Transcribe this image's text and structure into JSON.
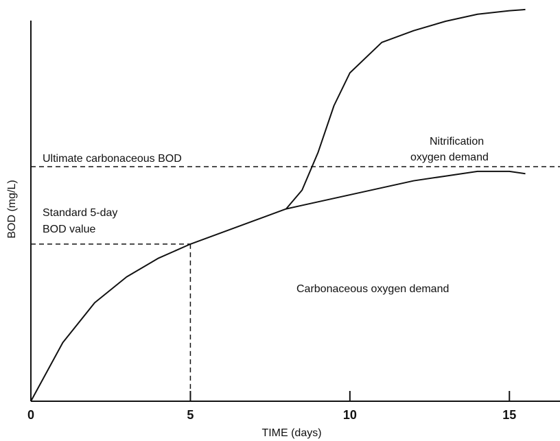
{
  "chart_data": {
    "type": "line",
    "x_label": "TIME (days)",
    "y_label": "BOD (mg/L)",
    "x": [
      0,
      1,
      2,
      3,
      4,
      5,
      6,
      7,
      8,
      8.5,
      9,
      9.5,
      10,
      11,
      12,
      13,
      14,
      15,
      15.5
    ],
    "series": [
      {
        "color": "#111111",
        "values": [
          0,
          0.25,
          0.42,
          0.53,
          0.61,
          0.67,
          0.72,
          0.77,
          0.82,
          0.835,
          0.85,
          0.865,
          0.88,
          0.91,
          0.94,
          0.96,
          0.98,
          0.98,
          0.97
        ]
      },
      {
        "color": "#111111",
        "values": [
          null,
          null,
          null,
          null,
          null,
          null,
          null,
          null,
          0.82,
          0.9,
          1.06,
          1.26,
          1.4,
          1.53,
          1.58,
          1.62,
          1.65,
          1.665,
          1.67
        ]
      }
    ],
    "ultimate_bod": 1.0,
    "xlim": [
      0,
      16.5
    ],
    "ylim": [
      0,
      1.68
    ],
    "xticks": [
      0,
      5,
      10,
      15
    ],
    "annotations": {
      "ultimate": "Ultimate carbonaceous BOD",
      "standard_1": "Standard 5-day",
      "standard_2": "BOD value",
      "nitrification_1": "Nitrification",
      "nitrification_2": "oxygen demand",
      "carbonaceous": "Carbonaceous oxygen demand"
    }
  }
}
